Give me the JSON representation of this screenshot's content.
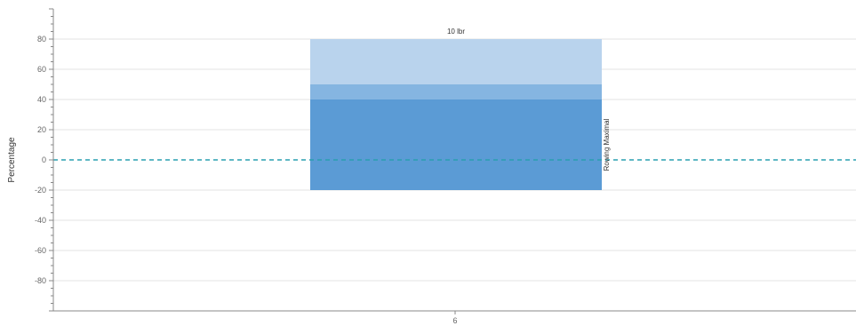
{
  "chart_data": {
    "type": "bar",
    "title": "",
    "xlabel": "",
    "ylabel": "Percentage",
    "ylim": [
      -100,
      100
    ],
    "yticks": [
      -80,
      -60,
      -40,
      -20,
      0,
      20,
      40,
      60,
      80
    ],
    "grid": true,
    "reference_line": {
      "y": 0,
      "style": "dashed",
      "color": "#2a9fb0"
    },
    "categories": [
      "6"
    ],
    "top_label": "10 lbr",
    "side_label": "Rowing Maximal",
    "segments": [
      {
        "from": -20,
        "to": 40,
        "color": "#5b9bd5"
      },
      {
        "from": 40,
        "to": 50,
        "color": "#85b5e1"
      },
      {
        "from": 50,
        "to": 80,
        "color": "#b9d3ed"
      }
    ]
  }
}
